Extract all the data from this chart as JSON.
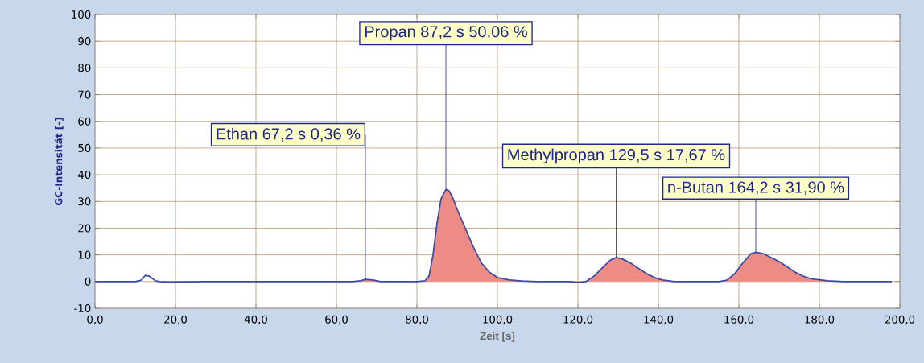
{
  "chart_data": {
    "type": "line",
    "xlabel": "Zeit [s]",
    "ylabel": "GC-Intensität [-]",
    "xlim": [
      0,
      200
    ],
    "ylim": [
      -10,
      100
    ],
    "xticks": [
      {
        "value": 0,
        "label": "0,0"
      },
      {
        "value": 20,
        "label": "20,0"
      },
      {
        "value": 40,
        "label": "40,0"
      },
      {
        "value": 60,
        "label": "60,0"
      },
      {
        "value": 80,
        "label": "80,0"
      },
      {
        "value": 100,
        "label": "100,0"
      },
      {
        "value": 120,
        "label": "120,0"
      },
      {
        "value": 140,
        "label": "140,0"
      },
      {
        "value": 160,
        "label": "160,0"
      },
      {
        "value": 180,
        "label": "180,0"
      },
      {
        "value": 200,
        "label": "200,0"
      }
    ],
    "yticks": [
      -10,
      0,
      10,
      20,
      30,
      40,
      50,
      60,
      70,
      80,
      90,
      100
    ],
    "grid": true,
    "series": [
      {
        "type": "area",
        "color": "#ec8c84",
        "x": [
          64,
          66,
          67.2,
          69,
          72,
          null,
          82,
          83,
          84,
          85,
          86,
          87.2,
          88,
          89,
          90,
          92,
          94,
          96,
          98,
          100,
          103,
          106,
          null,
          121,
          122,
          124,
          126,
          128,
          129.5,
          131,
          133,
          135,
          137,
          139,
          141,
          143,
          null,
          155,
          157,
          159,
          161,
          163,
          164.2,
          166,
          168,
          170,
          172,
          174,
          176,
          178,
          182,
          186
        ],
        "values": [
          0,
          0.3,
          0.8,
          0.6,
          0,
          null,
          0.3,
          2,
          10,
          22,
          31,
          34.5,
          34,
          31,
          27,
          20,
          13,
          7,
          3.5,
          1.5,
          0.6,
          0.2,
          null,
          0,
          0,
          2,
          5,
          8,
          9,
          8.5,
          7,
          5,
          3,
          1.5,
          0.6,
          0,
          null,
          0,
          0.5,
          3,
          7,
          10.5,
          11,
          10.5,
          9,
          7.5,
          5.5,
          3.5,
          2,
          1,
          0.3,
          0
        ]
      },
      {
        "color": "#3a4aa8",
        "x": [
          0,
          10,
          11.5,
          12.5,
          13.5,
          15,
          16,
          18,
          30,
          60,
          64,
          66,
          67.2,
          69,
          71,
          80,
          82,
          83,
          84,
          85,
          86,
          87.2,
          88,
          89,
          90,
          92,
          94,
          96,
          98,
          100,
          103,
          106,
          110,
          118,
          120,
          122,
          124,
          126,
          128,
          129.5,
          131,
          133,
          135,
          137,
          139,
          141,
          144,
          150,
          155,
          157,
          159,
          161,
          163,
          164.2,
          166,
          168,
          170,
          172,
          174,
          176,
          178,
          182,
          186,
          198
        ],
        "values": [
          0,
          0,
          0.5,
          2.3,
          2,
          0.3,
          0,
          -0.2,
          0,
          0,
          0,
          0.3,
          0.8,
          0.6,
          0,
          0,
          0.3,
          2,
          10,
          22,
          31,
          34.5,
          34,
          31,
          27,
          20,
          13,
          7,
          3.5,
          1.5,
          0.6,
          0.2,
          0,
          0,
          -0.3,
          0,
          2,
          5,
          8,
          9,
          8.5,
          7,
          5,
          3,
          1.5,
          0.6,
          0,
          0,
          0,
          0.5,
          3,
          7,
          10.5,
          11,
          10.5,
          9,
          7.5,
          5.5,
          3.5,
          2,
          1,
          0.3,
          0,
          0
        ]
      }
    ],
    "annotations": [
      {
        "text": "Ethan 67,2 s  0,36 %",
        "x": 67.2,
        "y": 0.8
      },
      {
        "text": "Propan  87,2 s   50,06 %",
        "x": 87.2,
        "y": 34.5
      },
      {
        "text": "Methylpropan  129,5 s   17,67 %",
        "x": 129.5,
        "y": 9
      },
      {
        "text": "n-Butan  164,2 s  31,90 %",
        "x": 164.2,
        "y": 11
      }
    ]
  }
}
